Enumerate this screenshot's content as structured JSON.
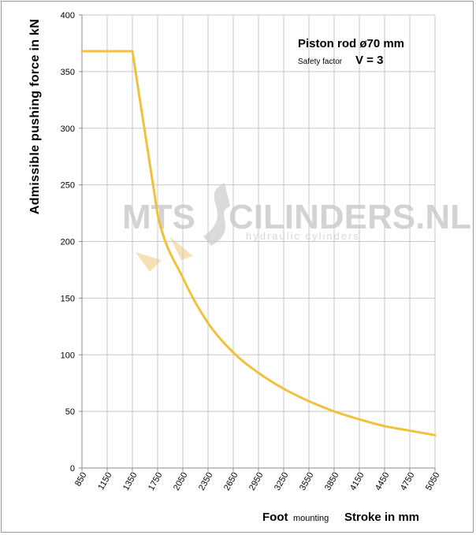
{
  "chart_data": {
    "type": "line",
    "xlabel_prefix": "Foot",
    "xlabel_mid": "mounting",
    "xlabel_main": "Stroke in mm",
    "ylabel": "Admissible  pushing  force in kN",
    "annotation_title": "Piston rod ø70 mm",
    "annotation_factor_label": "Safety factor",
    "annotation_factor_value": "V = 3",
    "x_ticks": [
      "850",
      "1150",
      "1350",
      "1750",
      "2050",
      "2350",
      "2650",
      "2950",
      "3250",
      "3550",
      "3850",
      "4150",
      "4450",
      "4750",
      "5050"
    ],
    "y_ticks": [
      0,
      50,
      100,
      150,
      200,
      250,
      300,
      350,
      400
    ],
    "ylim": [
      0,
      400
    ],
    "grid": "vertical-and-horizontal",
    "line_color": "#f2c13b",
    "series": [
      {
        "points": [
          {
            "x": "850",
            "y": 368
          },
          {
            "x": "1150",
            "y": 368
          },
          {
            "x": "1350",
            "y": 368
          },
          {
            "x": "1750",
            "y": 224
          },
          {
            "x": "2050",
            "y": 168
          },
          {
            "x": "2350",
            "y": 128
          },
          {
            "x": "2650",
            "y": 102
          },
          {
            "x": "2950",
            "y": 84
          },
          {
            "x": "3250",
            "y": 70
          },
          {
            "x": "3550",
            "y": 59
          },
          {
            "x": "3850",
            "y": 50
          },
          {
            "x": "4150",
            "y": 43
          },
          {
            "x": "4450",
            "y": 37
          },
          {
            "x": "4750",
            "y": 33
          },
          {
            "x": "5050",
            "y": 29
          }
        ]
      }
    ]
  },
  "watermark": {
    "brand_left": "MTS",
    "brand_right": "CILINDERS.NL",
    "tagline": "hydraulic cylinders"
  }
}
